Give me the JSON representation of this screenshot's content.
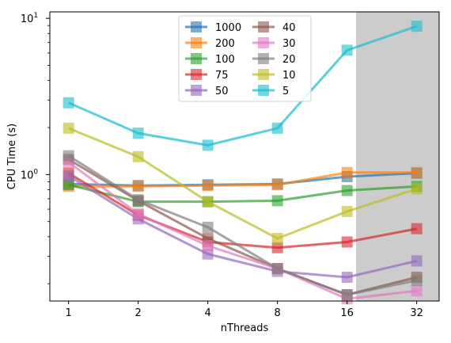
{
  "chart_data": {
    "type": "line",
    "xlabel": "nThreads",
    "ylabel": "CPU Time (s)",
    "x_scale": "log2",
    "y_scale": "log",
    "x": [
      1,
      2,
      4,
      8,
      16,
      32
    ],
    "xticks": [
      "1",
      "2",
      "4",
      "8",
      "16",
      "32"
    ],
    "yticks": [
      {
        "value": 1,
        "label": "10",
        "exp": "0"
      },
      {
        "value": 10,
        "label": "10",
        "exp": "1"
      }
    ],
    "ylim": [
      0.155,
      11
    ],
    "xlim": [
      0.83,
      40
    ],
    "shaded_region": {
      "x_from": 17.5,
      "x_to": 40,
      "color": "#cccccc"
    },
    "legend": {
      "placement": "top-center",
      "columns": 2
    },
    "series": [
      {
        "name": "1000",
        "color": "#1f77b4",
        "values": [
          0.87,
          0.85,
          0.86,
          0.87,
          0.97,
          1.02
        ]
      },
      {
        "name": "200",
        "color": "#ff7f0e",
        "values": [
          0.84,
          0.84,
          0.85,
          0.86,
          1.03,
          1.03
        ]
      },
      {
        "name": "100",
        "color": "#2ca02c",
        "values": [
          0.86,
          0.67,
          0.67,
          0.68,
          0.79,
          0.84
        ]
      },
      {
        "name": "75",
        "color": "#d62728",
        "values": [
          1.02,
          0.55,
          0.37,
          0.34,
          0.37,
          0.45
        ]
      },
      {
        "name": "50",
        "color": "#9467bd",
        "values": [
          0.98,
          0.52,
          0.31,
          0.24,
          0.22,
          0.28
        ]
      },
      {
        "name": "40",
        "color": "#8c564b",
        "values": [
          1.25,
          0.68,
          0.39,
          0.25,
          0.17,
          0.22
        ]
      },
      {
        "name": "30",
        "color": "#e377c2",
        "values": [
          1.2,
          0.56,
          0.35,
          0.25,
          0.16,
          0.18
        ]
      },
      {
        "name": "20",
        "color": "#7f7f7f",
        "values": [
          1.32,
          0.69,
          0.46,
          0.25,
          0.17,
          0.21
        ]
      },
      {
        "name": "10",
        "color": "#bcbd22",
        "values": [
          1.98,
          1.3,
          0.67,
          0.39,
          0.58,
          0.81
        ]
      },
      {
        "name": "5",
        "color": "#17becf",
        "values": [
          2.88,
          1.84,
          1.54,
          1.98,
          6.25,
          8.9
        ]
      }
    ]
  }
}
